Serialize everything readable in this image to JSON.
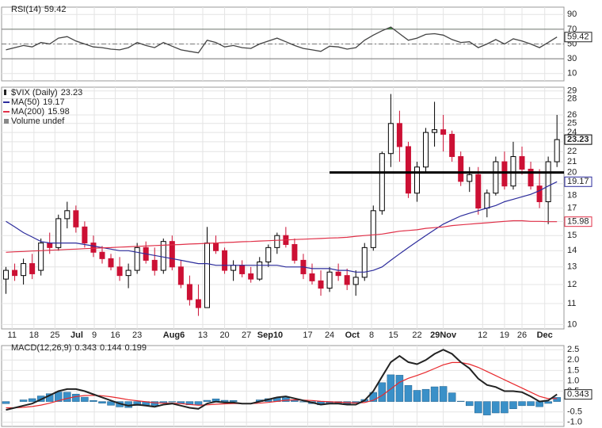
{
  "chart_data": [
    {
      "type": "line",
      "label": "RSI(14)",
      "color": "#444444",
      "values": [
        42,
        45,
        48,
        46,
        52,
        50,
        58,
        60,
        54,
        50,
        46,
        45,
        43,
        42,
        45,
        52,
        48,
        45,
        52,
        47,
        42,
        40,
        38,
        55,
        52,
        46,
        48,
        45,
        44,
        50,
        54,
        58,
        53,
        48,
        44,
        42,
        40,
        47,
        46,
        43,
        45,
        55,
        62,
        68,
        73,
        64,
        55,
        58,
        63,
        64,
        62,
        56,
        52,
        53,
        45,
        50,
        56,
        50,
        57,
        54,
        50,
        45,
        52,
        59.42
      ],
      "ylim": [
        0,
        100
      ],
      "yticks": [
        10,
        30,
        50,
        70,
        90
      ],
      "reference_lines": [
        {
          "value": 70
        },
        {
          "value": 50,
          "dashed": true
        },
        {
          "value": 30
        }
      ],
      "fill": {
        "above": 70,
        "color": "#3f8f3f"
      }
    },
    {
      "type": "candlestick",
      "label": "$VIX (Daily)",
      "up_color": "#000000",
      "down_color": "#cc1034",
      "log_scale": true,
      "grid": true,
      "ohlc": [
        [
          12.3,
          13,
          11.5,
          12.8
        ],
        [
          12.8,
          13.2,
          12.2,
          12.5
        ],
        [
          12.5,
          13.5,
          12.0,
          13.2
        ],
        [
          13.2,
          13.8,
          12.3,
          12.6
        ],
        [
          12.8,
          14.8,
          12.5,
          14.5
        ],
        [
          14.5,
          15.2,
          13.8,
          14.2
        ],
        [
          14.2,
          16.5,
          14,
          16.2
        ],
        [
          16.2,
          17.5,
          15.5,
          16.8
        ],
        [
          16.8,
          17.2,
          15.2,
          15.6
        ],
        [
          15.6,
          16,
          14.2,
          14.5
        ],
        [
          14.5,
          15,
          13.6,
          13.9
        ],
        [
          13.9,
          14.3,
          13.2,
          13.5
        ],
        [
          13.5,
          13.8,
          12.8,
          13.0
        ],
        [
          13.0,
          13.6,
          12.2,
          12.5
        ],
        [
          12.5,
          13.2,
          11.8,
          12.8
        ],
        [
          12.8,
          14.5,
          12.6,
          14.2
        ],
        [
          14.2,
          14.6,
          13.2,
          13.4
        ],
        [
          13.4,
          14.2,
          12.5,
          12.8
        ],
        [
          12.8,
          14.8,
          12.6,
          14.6
        ],
        [
          14.6,
          15.0,
          12.8,
          13.0
        ],
        [
          13.0,
          13.4,
          11.8,
          12.0
        ],
        [
          12.0,
          12.5,
          10.9,
          11.2
        ],
        [
          11.2,
          12,
          10.4,
          10.8
        ],
        [
          10.8,
          15.6,
          10.8,
          14.5
        ],
        [
          14.5,
          15.0,
          13.8,
          14.0
        ],
        [
          14,
          14.2,
          12.6,
          12.8
        ],
        [
          12.8,
          13.4,
          12.2,
          13.1
        ],
        [
          13.1,
          13.4,
          12.4,
          12.6
        ],
        [
          12.6,
          13.0,
          12.1,
          12.3
        ],
        [
          12.3,
          13.6,
          12.2,
          13.3
        ],
        [
          13.3,
          14.4,
          13.0,
          14.2
        ],
        [
          14.2,
          15.2,
          13.8,
          15.0
        ],
        [
          15,
          15.6,
          14.2,
          14.4
        ],
        [
          14.4,
          14.8,
          13.2,
          13.4
        ],
        [
          13.4,
          13.8,
          12.3,
          12.6
        ],
        [
          12.6,
          13.2,
          12.0,
          12.2
        ],
        [
          12.2,
          12.8,
          11.4,
          11.8
        ],
        [
          11.8,
          13.0,
          11.6,
          12.7
        ],
        [
          12.7,
          13.2,
          12.2,
          12.5
        ],
        [
          12.5,
          12.9,
          11.7,
          12.0
        ],
        [
          12.0,
          12.8,
          11.4,
          12.4
        ],
        [
          12.4,
          14.5,
          12.2,
          14.2
        ],
        [
          14.2,
          17.2,
          14.0,
          16.8
        ],
        [
          16.8,
          22,
          16.5,
          21.8
        ],
        [
          21.8,
          28.6,
          20.5,
          25.0
        ],
        [
          25,
          26.5,
          21,
          22.5
        ],
        [
          22.5,
          23,
          17.8,
          18.2
        ],
        [
          18.2,
          21,
          17.5,
          20.5
        ],
        [
          20.5,
          24.5,
          20.0,
          24.0
        ],
        [
          24,
          27.6,
          22.5,
          24.3
        ],
        [
          24.3,
          26,
          22,
          23.8
        ],
        [
          23.8,
          24.2,
          21.0,
          21.5
        ],
        [
          21.5,
          22,
          18.8,
          19.2
        ],
        [
          19.2,
          20.5,
          18.3,
          19.8
        ],
        [
          19.8,
          20.5,
          16.5,
          17.0
        ],
        [
          17,
          18.5,
          16.3,
          18.2
        ],
        [
          18.2,
          21.5,
          18.0,
          21.0
        ],
        [
          21,
          22,
          18.5,
          18.8
        ],
        [
          18.8,
          23,
          18.5,
          21.5
        ],
        [
          21.5,
          22.5,
          19.8,
          20.3
        ],
        [
          20.3,
          21,
          18.5,
          18.8
        ],
        [
          18.8,
          20.3,
          17.0,
          17.5
        ],
        [
          17.5,
          21.5,
          15.8,
          21.0
        ],
        [
          21,
          26,
          20.5,
          23.23
        ]
      ],
      "series": [
        {
          "name": "MA(50)",
          "color": "#2c2c9c",
          "values": [
            16.0,
            15.6,
            15.2,
            14.9,
            14.6,
            14.5,
            14.5,
            14.5,
            14.5,
            14.4,
            14.3,
            14.2,
            14.1,
            14.0,
            14.0,
            13.9,
            13.8,
            13.7,
            13.6,
            13.5,
            13.4,
            13.3,
            13.2,
            13.2,
            13.1,
            13.1,
            13.1,
            13.1,
            13.1,
            13.1,
            13.1,
            13.1,
            13.0,
            13.0,
            13.0,
            12.9,
            12.9,
            12.9,
            12.8,
            12.8,
            12.7,
            12.7,
            12.8,
            13.0,
            13.4,
            13.8,
            14.2,
            14.6,
            15.0,
            15.4,
            15.8,
            16.1,
            16.4,
            16.6,
            16.8,
            17.0,
            17.2,
            17.5,
            17.7,
            17.9,
            18.1,
            18.4,
            18.8,
            19.17
          ]
        },
        {
          "name": "MA(200)",
          "color": "#e03048",
          "values": [
            13.9,
            13.93,
            13.95,
            13.98,
            14.0,
            14.03,
            14.05,
            14.08,
            14.1,
            14.13,
            14.15,
            14.18,
            14.2,
            14.23,
            14.25,
            14.28,
            14.3,
            14.33,
            14.35,
            14.38,
            14.4,
            14.43,
            14.45,
            14.48,
            14.5,
            14.53,
            14.55,
            14.58,
            14.6,
            14.63,
            14.65,
            14.68,
            14.7,
            14.73,
            14.75,
            14.78,
            14.8,
            14.83,
            14.85,
            14.88,
            14.95,
            15.0,
            15.05,
            15.1,
            15.2,
            15.3,
            15.35,
            15.4,
            15.5,
            15.55,
            15.6,
            15.7,
            15.75,
            15.8,
            15.85,
            15.9,
            15.95,
            16.0,
            16.05,
            16.05,
            16.0,
            16.0,
            15.98,
            15.98
          ]
        }
      ],
      "volume_label": "Volume undef",
      "reference_line": {
        "value": 20,
        "from": 37
      },
      "ylim": [
        9.8,
        29.5
      ],
      "yticks": [
        10,
        11,
        12,
        13,
        14,
        15,
        16,
        17,
        18,
        19,
        20,
        21,
        22,
        23,
        24,
        25,
        26,
        28,
        29
      ],
      "xlim": [
        -0.5,
        63.8
      ],
      "xticks": [
        {
          "value": 0.7,
          "label": "11"
        },
        {
          "value": 3.2,
          "label": "18"
        },
        {
          "value": 5.6,
          "label": "25"
        },
        {
          "value": 8.1,
          "label": "Jul"
        },
        {
          "value": 10.1,
          "label": "9"
        },
        {
          "value": 12.5,
          "label": "16"
        },
        {
          "value": 15,
          "label": "23"
        },
        {
          "value": 19.2,
          "label": "Aug6"
        },
        {
          "value": 22.5,
          "label": "13"
        },
        {
          "value": 25,
          "label": "20"
        },
        {
          "value": 27.5,
          "label": "27"
        },
        {
          "value": 30.2,
          "label": "Sep10"
        },
        {
          "value": 34.5,
          "label": "17"
        },
        {
          "value": 37,
          "label": "24"
        },
        {
          "value": 39.6,
          "label": "Oct"
        },
        {
          "value": 41.8,
          "label": "8"
        },
        {
          "value": 44.3,
          "label": "15"
        },
        {
          "value": 47,
          "label": "22"
        },
        {
          "value": 50,
          "label": "29Nov"
        },
        {
          "value": 54.5,
          "label": "12"
        },
        {
          "value": 57,
          "label": "19"
        },
        {
          "value": 59,
          "label": "26"
        },
        {
          "value": 61.6,
          "label": "Dec"
        }
      ]
    },
    {
      "type": "macd",
      "label": "MACD(12,26,9)",
      "macd": {
        "color": "#222222",
        "values": [
          -0.4,
          -0.3,
          -0.2,
          -0.1,
          0.1,
          0.3,
          0.5,
          0.6,
          0.6,
          0.5,
          0.35,
          0.2,
          0.05,
          -0.1,
          -0.2,
          -0.15,
          -0.2,
          -0.25,
          -0.15,
          -0.1,
          -0.2,
          -0.3,
          -0.35,
          -0.1,
          0.0,
          -0.05,
          -0.05,
          -0.1,
          -0.1,
          0.0,
          0.1,
          0.2,
          0.25,
          0.15,
          0.05,
          -0.05,
          -0.15,
          -0.1,
          -0.1,
          -0.15,
          -0.15,
          0.05,
          0.5,
          1.2,
          1.9,
          2.2,
          1.9,
          1.8,
          2.0,
          2.3,
          2.5,
          2.3,
          1.9,
          1.6,
          1.1,
          0.8,
          0.7,
          0.5,
          0.5,
          0.45,
          0.25,
          0.0,
          0.05,
          0.343
        ]
      },
      "signal": {
        "color": "#e8282c",
        "values": [
          -0.3,
          -0.3,
          -0.28,
          -0.24,
          -0.17,
          -0.08,
          0.04,
          0.15,
          0.24,
          0.29,
          0.3,
          0.28,
          0.23,
          0.16,
          0.09,
          0.04,
          -0.01,
          -0.06,
          -0.08,
          -0.08,
          -0.1,
          -0.14,
          -0.18,
          -0.16,
          -0.13,
          -0.11,
          -0.1,
          -0.1,
          -0.1,
          -0.08,
          -0.04,
          0.01,
          0.06,
          0.08,
          0.07,
          0.05,
          0.01,
          -0.01,
          -0.03,
          -0.05,
          -0.07,
          -0.05,
          0.06,
          0.29,
          0.61,
          0.93,
          1.12,
          1.26,
          1.41,
          1.59,
          1.77,
          1.88,
          1.88,
          1.8,
          1.65,
          1.45,
          1.25,
          1.05,
          0.85,
          0.65,
          0.45,
          0.25,
          0.14,
          0.144
        ]
      },
      "histogram": {
        "color": "#3a90c8",
        "values": [
          -0.1,
          0,
          0.08,
          0.14,
          0.27,
          0.38,
          0.46,
          0.45,
          0.36,
          0.21,
          0.05,
          -0.08,
          -0.18,
          -0.26,
          -0.29,
          -0.19,
          -0.19,
          -0.19,
          -0.07,
          -0.02,
          -0.1,
          -0.16,
          -0.17,
          0.06,
          0.13,
          0.06,
          0.05,
          0,
          0,
          0.08,
          0.14,
          0.19,
          0.19,
          0.07,
          -0.02,
          -0.1,
          -0.16,
          -0.09,
          -0.07,
          -0.1,
          -0.08,
          0.1,
          0.44,
          0.91,
          1.29,
          1.27,
          0.78,
          0.54,
          0.59,
          0.71,
          0.73,
          0.42,
          0.02,
          -0.2,
          -0.55,
          -0.65,
          -0.55,
          -0.55,
          -0.35,
          -0.2,
          -0.2,
          -0.25,
          -0.09,
          0.199
        ]
      },
      "ylim": [
        -1.2,
        2.7
      ],
      "yticks": [
        2.5,
        {
          "value": 2.0,
          "label": "2.0"
        },
        1.5,
        {
          "value": 1.0,
          "label": "1.0"
        },
        0.5,
        -0.5,
        {
          "value": -1.0,
          "label": "-1.0"
        }
      ]
    }
  ]
}
